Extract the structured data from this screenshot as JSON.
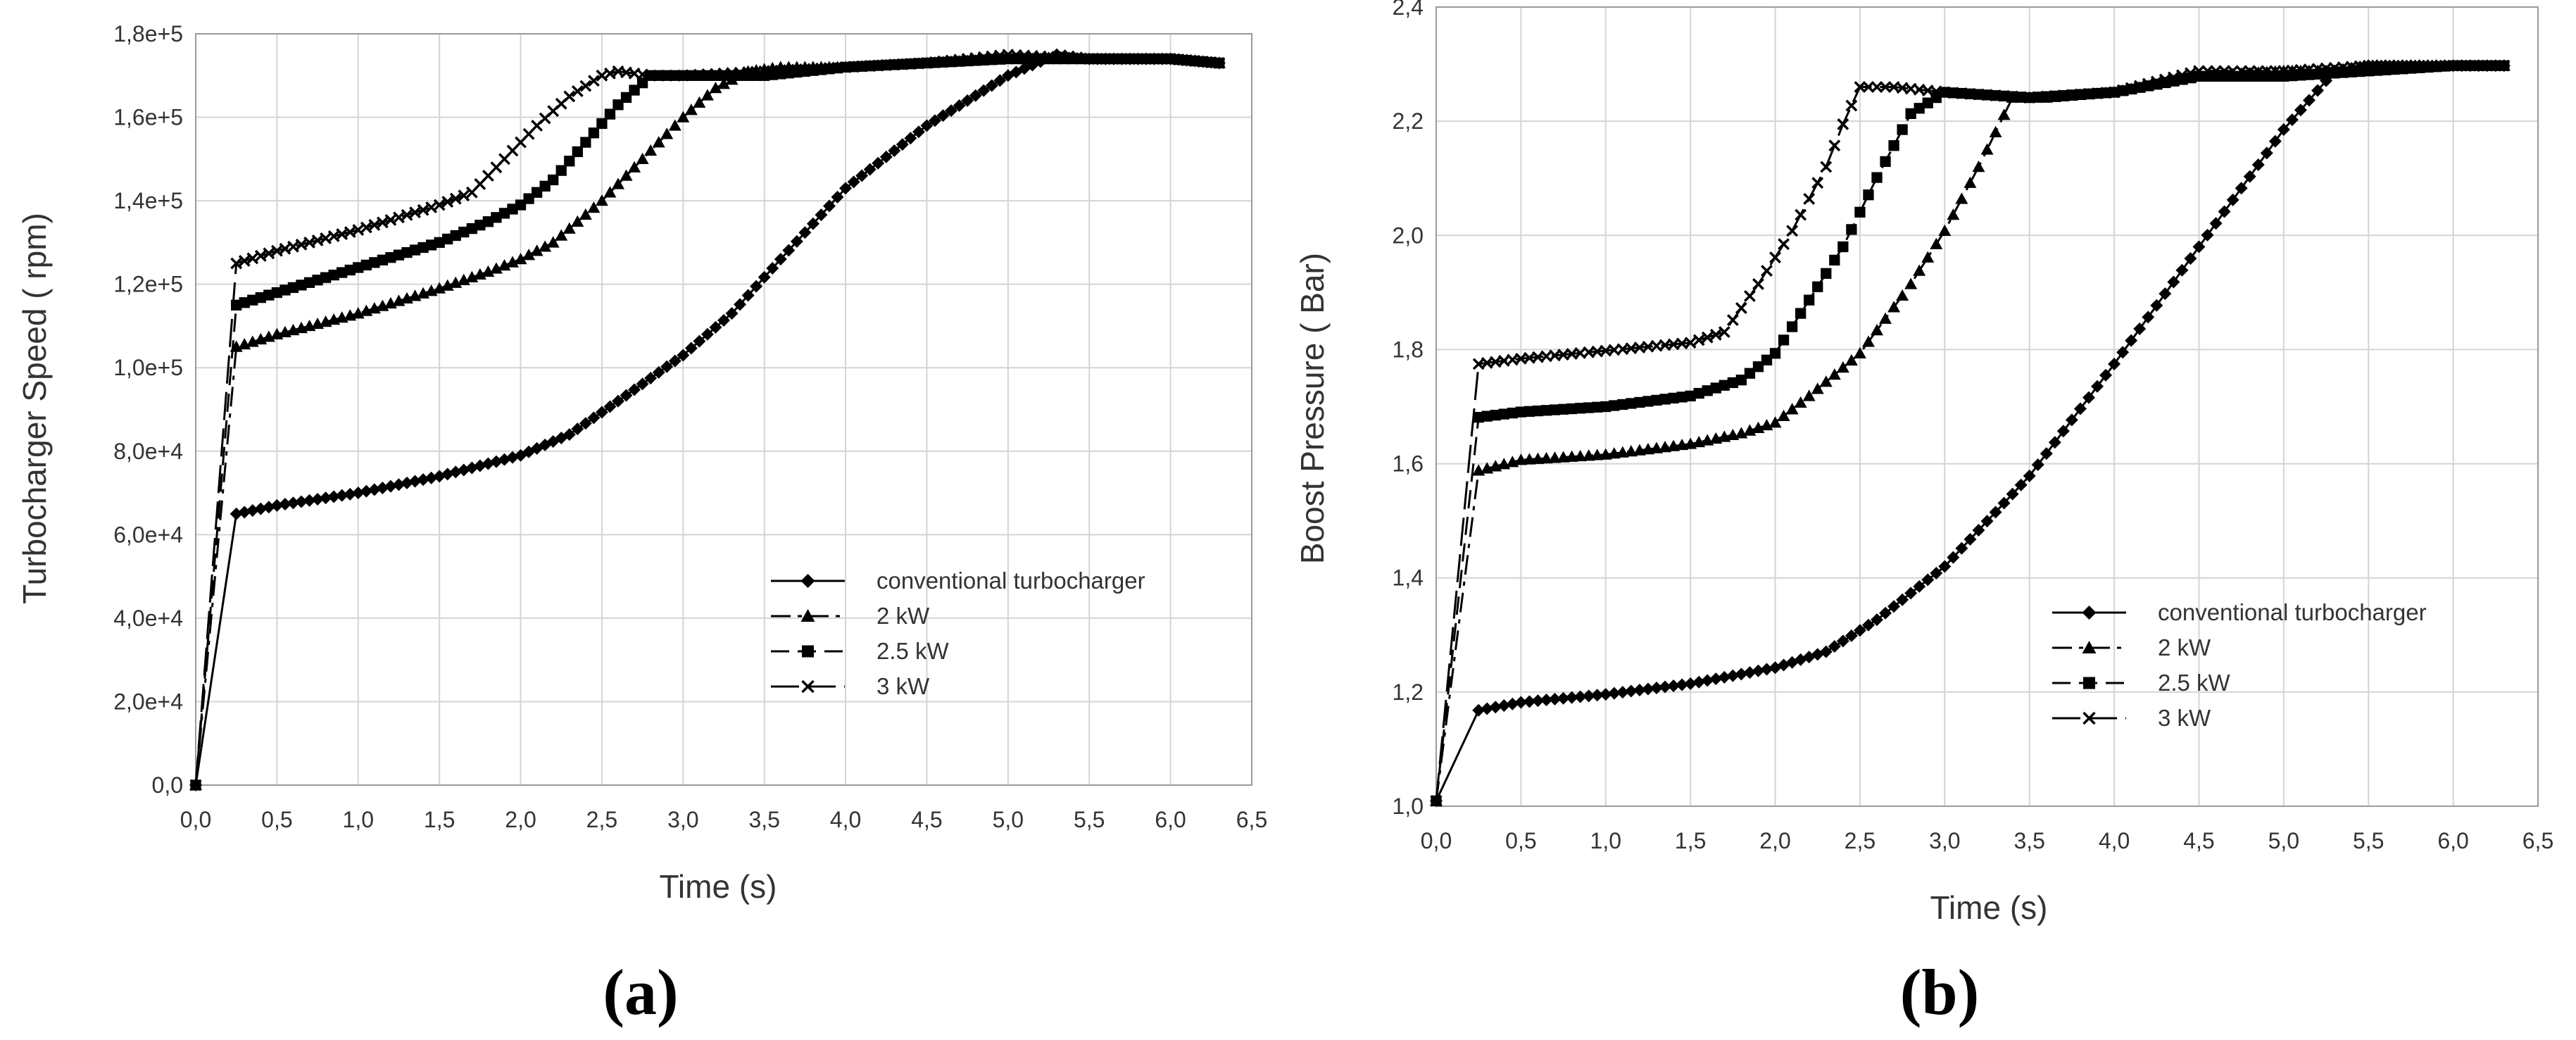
{
  "chart_data": [
    {
      "type": "line",
      "panel_label": "(a)",
      "title": "",
      "xlabel": "Time (s)",
      "ylabel": "Turbocharger Speed ( rpm)",
      "xlim": [
        0,
        6.5
      ],
      "ylim": [
        0,
        180000
      ],
      "xticks": [
        "0,0",
        "0,5",
        "1,0",
        "1,5",
        "2,0",
        "2,5",
        "3,0",
        "3,5",
        "4,0",
        "4,5",
        "5,0",
        "5,5",
        "6,0",
        "6,5"
      ],
      "yticks": [
        "0,0",
        "2,0e+4",
        "4,0e+4",
        "6,0e+4",
        "8,0e+4",
        "1,0e+5",
        "1,2e+5",
        "1,4e+5",
        "1,6e+5",
        "1,8e+5"
      ],
      "grid": true,
      "legend_position": "lower-right",
      "series": [
        {
          "name": "conventional turbocharger",
          "marker": "diamond",
          "dash": "solid",
          "x": [
            0,
            0.25,
            0.5,
            1.0,
            1.5,
            2.0,
            2.3,
            2.6,
            3.0,
            3.3,
            3.6,
            4.0,
            4.5,
            5.0,
            5.3,
            5.5,
            6.0,
            6.3
          ],
          "y": [
            0,
            65000,
            67000,
            70000,
            74000,
            79000,
            84000,
            92000,
            103000,
            113000,
            126000,
            143000,
            158000,
            170000,
            175000,
            174000,
            174000,
            173000
          ]
        },
        {
          "name": "2 kW",
          "marker": "triangle",
          "dash": "dashdot",
          "x": [
            0,
            0.25,
            0.5,
            1.0,
            1.5,
            1.8,
            2.0,
            2.2,
            2.5,
            2.8,
            3.0,
            3.2,
            3.4,
            3.6,
            4.0,
            4.5,
            5.0,
            5.5,
            6.0,
            6.3
          ],
          "y": [
            0,
            105000,
            108000,
            113000,
            119000,
            123000,
            126000,
            130000,
            140000,
            152000,
            160000,
            167000,
            171000,
            172000,
            172000,
            173000,
            174000,
            174000,
            174000,
            173000
          ]
        },
        {
          "name": "2.5 kW",
          "marker": "square",
          "dash": "dashed",
          "x": [
            0,
            0.25,
            0.5,
            1.0,
            1.5,
            1.8,
            2.0,
            2.2,
            2.4,
            2.6,
            2.8,
            3.0,
            3.5,
            4.0,
            4.5,
            5.0,
            5.5,
            6.0,
            6.3
          ],
          "y": [
            0,
            115000,
            118000,
            124000,
            130000,
            135000,
            139000,
            145000,
            154000,
            163000,
            170000,
            170000,
            170000,
            172000,
            173000,
            174000,
            174000,
            174000,
            173000
          ]
        },
        {
          "name": "3 kW",
          "marker": "x",
          "dash": "longdash",
          "x": [
            0,
            0.25,
            0.5,
            1.0,
            1.5,
            1.7,
            1.9,
            2.1,
            2.3,
            2.5,
            2.6,
            2.8,
            3.0,
            3.5,
            4.0,
            4.5,
            5.0,
            5.5,
            6.0,
            6.3
          ],
          "y": [
            0,
            125000,
            128000,
            133000,
            139000,
            142000,
            150000,
            158000,
            165000,
            170000,
            171000,
            170000,
            170000,
            171000,
            172000,
            173000,
            175000,
            174000,
            174000,
            173000
          ]
        }
      ]
    },
    {
      "type": "line",
      "panel_label": "(b)",
      "title": "",
      "xlabel": "Time (s)",
      "ylabel": "Boost Pressure ( Bar)",
      "xlim": [
        0,
        6.5
      ],
      "ylim": [
        1.0,
        2.5
      ],
      "xticks": [
        "0,0",
        "0,5",
        "1,0",
        "1,5",
        "2,0",
        "2,5",
        "3,0",
        "3,5",
        "4,0",
        "4,5",
        "5,0",
        "5,5",
        "6,0",
        "6,5"
      ],
      "yticks": [
        "1,0",
        "1,2",
        "1,4",
        "1,6",
        "1,8",
        "2,0",
        "2,2",
        "2,4"
      ],
      "grid": true,
      "legend_position": "lower-right",
      "series": [
        {
          "name": "conventional turbocharger",
          "marker": "diamond",
          "dash": "solid",
          "x": [
            0,
            0.25,
            0.5,
            1.0,
            1.5,
            2.0,
            2.3,
            2.6,
            3.0,
            3.5,
            4.0,
            4.5,
            5.0,
            5.3,
            5.5,
            6.0,
            6.3
          ],
          "y": [
            1.01,
            1.18,
            1.195,
            1.21,
            1.23,
            1.26,
            1.29,
            1.35,
            1.45,
            1.62,
            1.83,
            2.05,
            2.27,
            2.38,
            2.39,
            2.39,
            2.39
          ]
        },
        {
          "name": "2 kW",
          "marker": "triangle",
          "dash": "dashdot",
          "x": [
            0,
            0.25,
            0.5,
            1.0,
            1.5,
            1.8,
            2.0,
            2.2,
            2.5,
            2.8,
            3.0,
            3.2,
            3.4,
            3.6,
            4.0,
            4.5,
            5.0,
            5.5,
            6.0,
            6.3
          ],
          "y": [
            1.01,
            1.63,
            1.65,
            1.66,
            1.68,
            1.7,
            1.72,
            1.77,
            1.85,
            1.98,
            2.08,
            2.2,
            2.33,
            2.33,
            2.34,
            2.37,
            2.38,
            2.38,
            2.39,
            2.39
          ]
        },
        {
          "name": "2.5 kW",
          "marker": "square",
          "dash": "dashed",
          "x": [
            0,
            0.25,
            0.5,
            1.0,
            1.5,
            1.8,
            2.0,
            2.2,
            2.4,
            2.6,
            2.8,
            3.0,
            3.5,
            4.0,
            4.5,
            5.0,
            5.5,
            6.0,
            6.3
          ],
          "y": [
            1.01,
            1.73,
            1.74,
            1.75,
            1.77,
            1.8,
            1.85,
            1.95,
            2.05,
            2.18,
            2.3,
            2.34,
            2.33,
            2.34,
            2.37,
            2.37,
            2.38,
            2.39,
            2.39
          ]
        },
        {
          "name": "3 kW",
          "marker": "x",
          "dash": "longdash",
          "x": [
            0,
            0.25,
            0.5,
            1.0,
            1.5,
            1.7,
            1.9,
            2.1,
            2.3,
            2.4,
            2.5,
            2.7,
            3.0,
            3.5,
            4.0,
            4.5,
            5.0,
            5.5,
            6.0,
            6.3
          ],
          "y": [
            1.01,
            1.83,
            1.84,
            1.855,
            1.87,
            1.89,
            1.98,
            2.08,
            2.2,
            2.28,
            2.35,
            2.35,
            2.34,
            2.33,
            2.34,
            2.38,
            2.38,
            2.39,
            2.39,
            2.39
          ]
        }
      ]
    }
  ]
}
